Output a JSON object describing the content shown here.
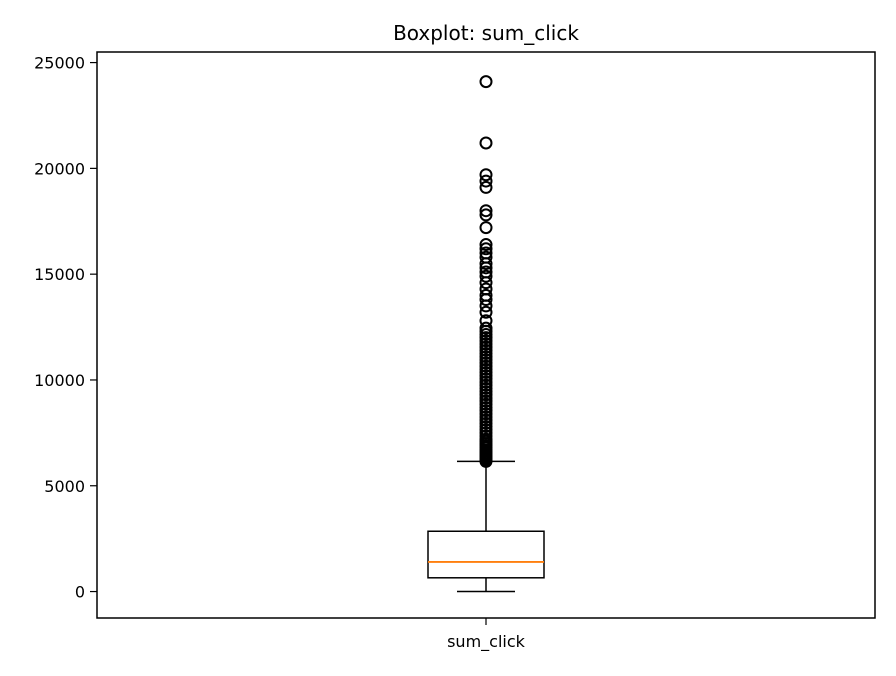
{
  "chart_data": {
    "type": "boxplot",
    "title": "Boxplot: sum_click",
    "xlabel": "",
    "ylabel": "",
    "ylim": [
      -1250,
      25500
    ],
    "yticks": [
      0,
      5000,
      10000,
      15000,
      20000,
      25000
    ],
    "yticklabels": [
      "0",
      "5000",
      "10000",
      "15000",
      "20000",
      "25000"
    ],
    "categories": [
      "sum_click"
    ],
    "grid": false,
    "boxes": [
      {
        "label": "sum_click",
        "whisker_low": 0,
        "q1": 650,
        "median": 1400,
        "q3": 2850,
        "whisker_high": 6150,
        "outliers": [
          6150,
          6220,
          6300,
          6380,
          6460,
          6540,
          6620,
          6700,
          6800,
          6900,
          7000,
          7100,
          7200,
          7350,
          7500,
          7650,
          7800,
          7950,
          8100,
          8250,
          8400,
          8550,
          8700,
          8850,
          9000,
          9150,
          9300,
          9450,
          9600,
          9750,
          9900,
          10050,
          10200,
          10350,
          10500,
          10650,
          10800,
          10950,
          11100,
          11250,
          11400,
          11550,
          11700,
          11850,
          12000,
          12150,
          12300,
          12450,
          12800,
          13200,
          13500,
          13800,
          14000,
          14300,
          14600,
          14900,
          15100,
          15300,
          15500,
          15800,
          16000,
          16200,
          16400,
          17200,
          17800,
          18000,
          19100,
          19400,
          19700,
          21200,
          24100
        ]
      }
    ]
  },
  "colors": {
    "box": "#000000",
    "median": "#ff7f0e",
    "flier": "#000000",
    "background": "#ffffff"
  }
}
